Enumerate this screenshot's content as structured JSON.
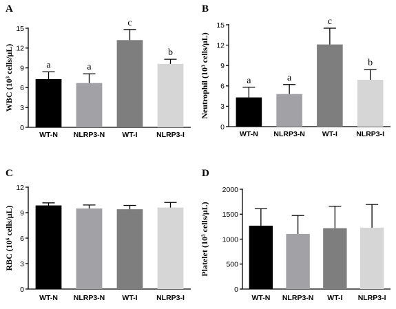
{
  "chart_data": [
    {
      "type": "bar",
      "panel": "A",
      "ylabel": "WBC (10³ cells/μL)",
      "categories": [
        "WT-N",
        "NLRP3-N",
        "WT-I",
        "NLRP3-I"
      ],
      "values": [
        7.3,
        6.7,
        13.2,
        9.6
      ],
      "errors": [
        1.1,
        1.4,
        1.6,
        0.7
      ],
      "annotations": [
        "a",
        "a",
        "c",
        "b"
      ],
      "colors": [
        "#000000",
        "#a1a1a6",
        "#7e7e7e",
        "#d6d6d6"
      ],
      "ylim": [
        0,
        15
      ],
      "yticks": [
        0,
        3,
        6,
        9,
        12,
        15
      ]
    },
    {
      "type": "bar",
      "panel": "B",
      "ylabel": "Neutrophil (10³ cells/μL)",
      "categories": [
        "WT-N",
        "NLRP3-N",
        "WT-I",
        "NLRP3-I"
      ],
      "values": [
        4.3,
        4.8,
        12.1,
        6.9
      ],
      "errors": [
        1.5,
        1.4,
        2.4,
        1.5
      ],
      "annotations": [
        "a",
        "a",
        "c",
        "b"
      ],
      "colors": [
        "#000000",
        "#a1a1a6",
        "#7e7e7e",
        "#d6d6d6"
      ],
      "ylim": [
        0,
        15
      ],
      "yticks": [
        0,
        3,
        6,
        9,
        12,
        15
      ]
    },
    {
      "type": "bar",
      "panel": "C",
      "ylabel": "RBC (10⁶ cells/μL)",
      "categories": [
        "WT-N",
        "NLRP3-N",
        "WT-I",
        "NLRP3-I"
      ],
      "values": [
        9.85,
        9.5,
        9.4,
        9.6
      ],
      "errors": [
        0.3,
        0.4,
        0.45,
        0.6
      ],
      "annotations": [],
      "colors": [
        "#000000",
        "#a1a1a6",
        "#7e7e7e",
        "#d6d6d6"
      ],
      "ylim": [
        0,
        12
      ],
      "yticks": [
        0,
        3,
        6,
        9,
        12
      ]
    },
    {
      "type": "bar",
      "panel": "D",
      "ylabel": "Platelet (10³ cells/μL)",
      "categories": [
        "WT-N",
        "NLRP3-N",
        "WT-I",
        "NLRP3-I"
      ],
      "values": [
        1270,
        1105,
        1220,
        1230
      ],
      "errors": [
        340,
        370,
        440,
        465
      ],
      "annotations": [],
      "colors": [
        "#000000",
        "#a1a1a6",
        "#7e7e7e",
        "#d6d6d6"
      ],
      "ylim": [
        0,
        2000
      ],
      "yticks": [
        0,
        500,
        1000,
        1500,
        2000
      ]
    }
  ]
}
